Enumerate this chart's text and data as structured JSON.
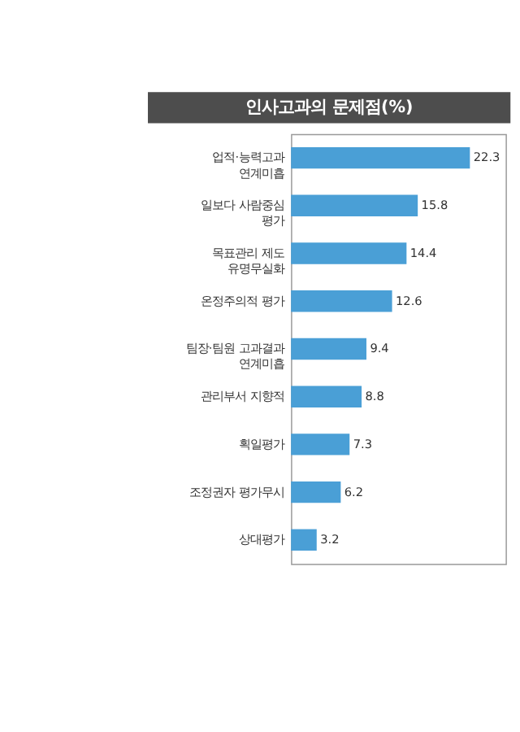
{
  "chart_data": {
    "type": "bar",
    "orientation": "horizontal",
    "title": "인사고과의 문제점(%)",
    "categories": [
      "업적·능력고과\n연계미흡",
      "일보다 사람중심\n평가",
      "목표관리 제도\n유명무실화",
      "온정주의적 평가",
      "팀장·팀원 고과결과\n연계미흡",
      "관리부서 지향적",
      "획일평가",
      "조정권자 평가무시",
      "상대평가"
    ],
    "values": [
      22.3,
      15.8,
      14.4,
      12.6,
      9.4,
      8.8,
      7.3,
      6.2,
      3.2
    ],
    "color": "#4a9fd6",
    "data_labels": true,
    "grid": false
  }
}
